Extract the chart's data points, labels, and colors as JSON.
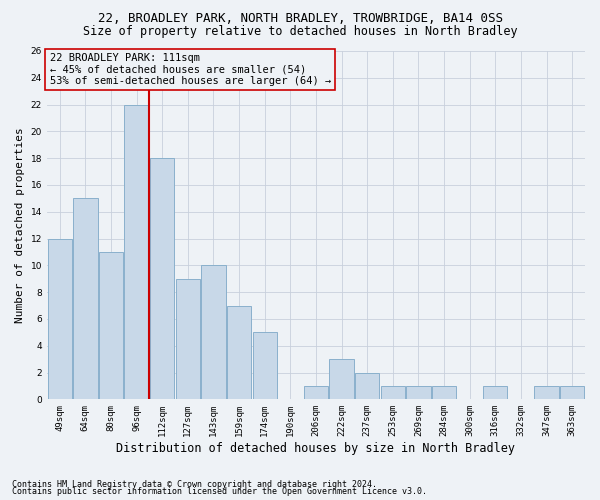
{
  "title": "22, BROADLEY PARK, NORTH BRADLEY, TROWBRIDGE, BA14 0SS",
  "subtitle": "Size of property relative to detached houses in North Bradley",
  "xlabel": "Distribution of detached houses by size in North Bradley",
  "ylabel": "Number of detached properties",
  "categories": [
    "49sqm",
    "64sqm",
    "80sqm",
    "96sqm",
    "112sqm",
    "127sqm",
    "143sqm",
    "159sqm",
    "174sqm",
    "190sqm",
    "206sqm",
    "222sqm",
    "237sqm",
    "253sqm",
    "269sqm",
    "284sqm",
    "300sqm",
    "316sqm",
    "332sqm",
    "347sqm",
    "363sqm"
  ],
  "values": [
    12,
    15,
    11,
    22,
    18,
    9,
    10,
    7,
    5,
    0,
    1,
    3,
    2,
    1,
    1,
    1,
    0,
    1,
    0,
    1,
    1
  ],
  "bar_color": "#c8d8e8",
  "bar_edge_color": "#8ab0cc",
  "grid_color": "#c8d0dc",
  "annotation_box_text": "22 BROADLEY PARK: 111sqm\n← 45% of detached houses are smaller (54)\n53% of semi-detached houses are larger (64) →",
  "vline_color": "#cc0000",
  "ylim": [
    0,
    26
  ],
  "yticks": [
    0,
    2,
    4,
    6,
    8,
    10,
    12,
    14,
    16,
    18,
    20,
    22,
    24,
    26
  ],
  "footnote1": "Contains HM Land Registry data © Crown copyright and database right 2024.",
  "footnote2": "Contains public sector information licensed under the Open Government Licence v3.0.",
  "background_color": "#eef2f6",
  "title_fontsize": 9,
  "subtitle_fontsize": 8.5,
  "annotation_fontsize": 7.5,
  "tick_fontsize": 6.5,
  "ylabel_fontsize": 8,
  "xlabel_fontsize": 8.5,
  "footnote_fontsize": 6
}
